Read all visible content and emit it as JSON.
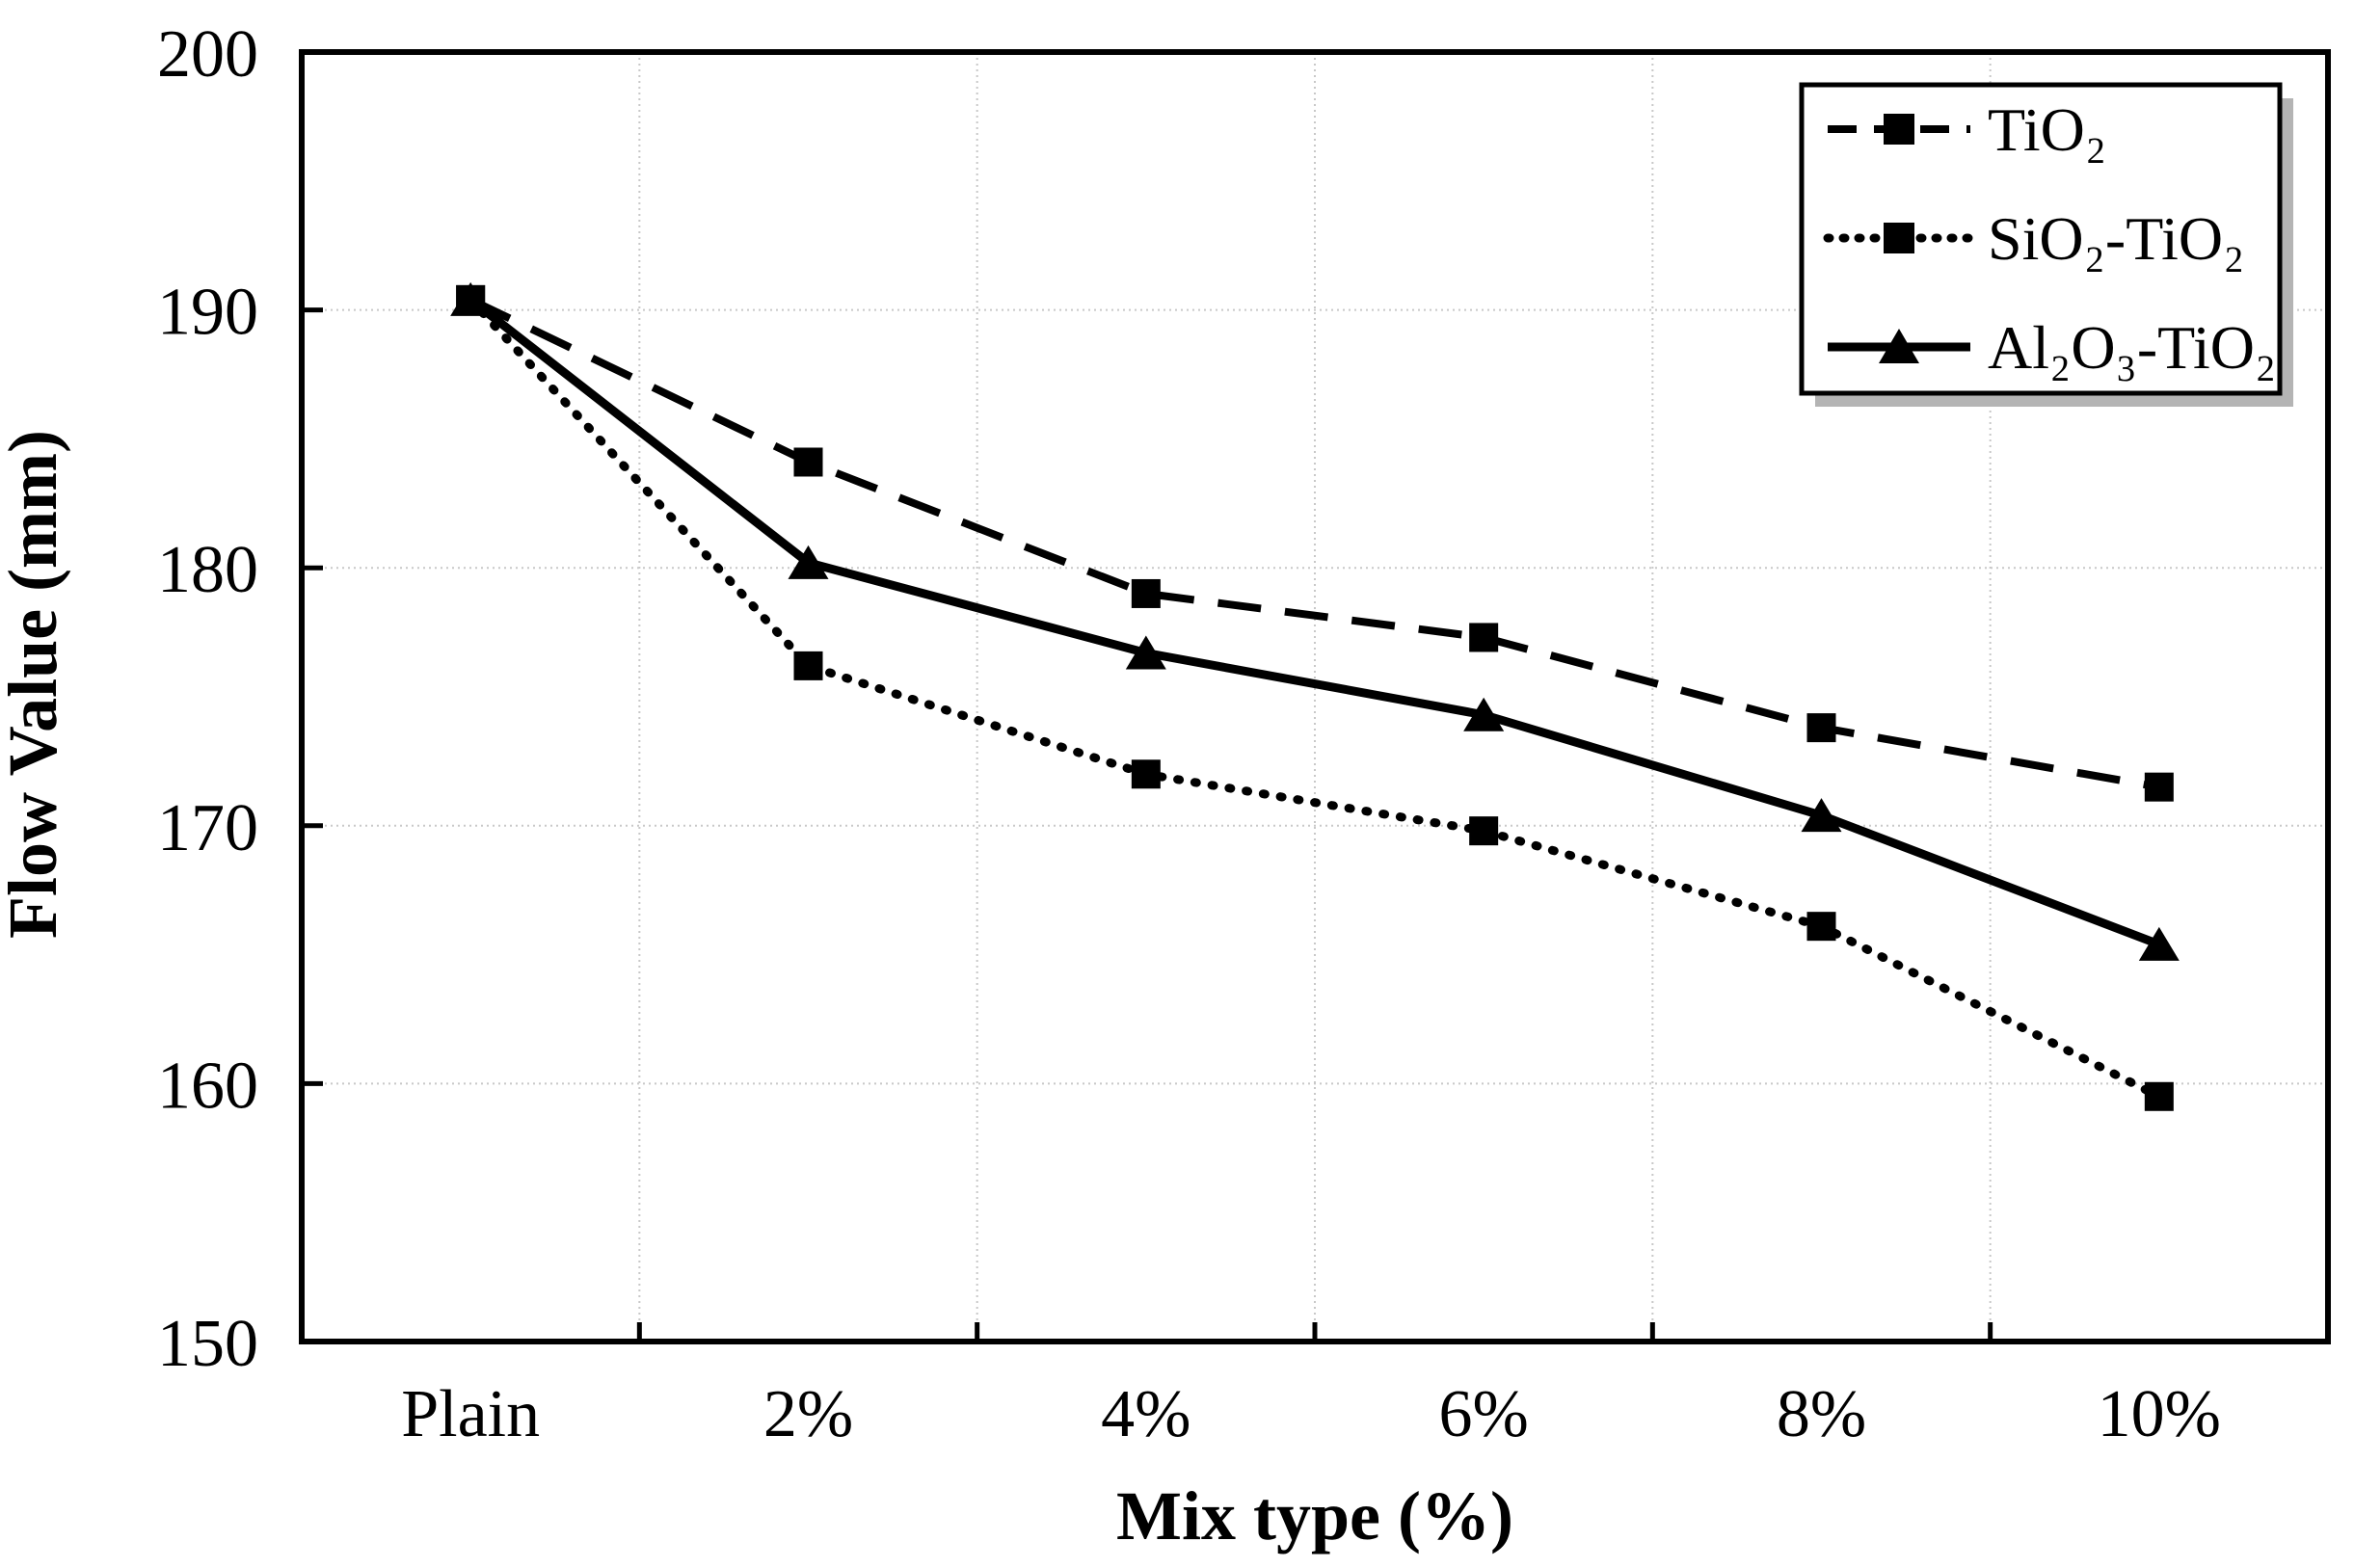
{
  "chart_data": {
    "type": "line",
    "title": "",
    "xlabel": "Mix type (%)",
    "ylabel": "Flow Value (mm)",
    "categories": [
      "Plain",
      "2%",
      "4%",
      "6%",
      "8%",
      "10%"
    ],
    "series": [
      {
        "name": "TiO₂",
        "values": [
          190.4,
          184.1,
          179.0,
          177.3,
          173.8,
          171.5
        ],
        "line_style": "dashed",
        "marker": "square"
      },
      {
        "name": "SiO₂-TiO₂",
        "values": [
          190.4,
          176.2,
          172.0,
          169.8,
          166.1,
          159.5
        ],
        "line_style": "dotted",
        "marker": "square"
      },
      {
        "name": "Al₂O₃-TiO₂",
        "values": [
          190.4,
          180.2,
          176.7,
          174.3,
          170.4,
          165.4
        ],
        "line_style": "solid",
        "marker": "triangle"
      }
    ],
    "ylim": [
      150,
      200
    ],
    "yticks": [
      150,
      160,
      170,
      180,
      190,
      200
    ],
    "grid": true,
    "legend_position": "top-right",
    "colors": {
      "series": "#000000",
      "grid": "#c8c8c8",
      "background": "#ffffff",
      "border": "#000000",
      "legend_shadow": "#b4b4b4"
    }
  }
}
